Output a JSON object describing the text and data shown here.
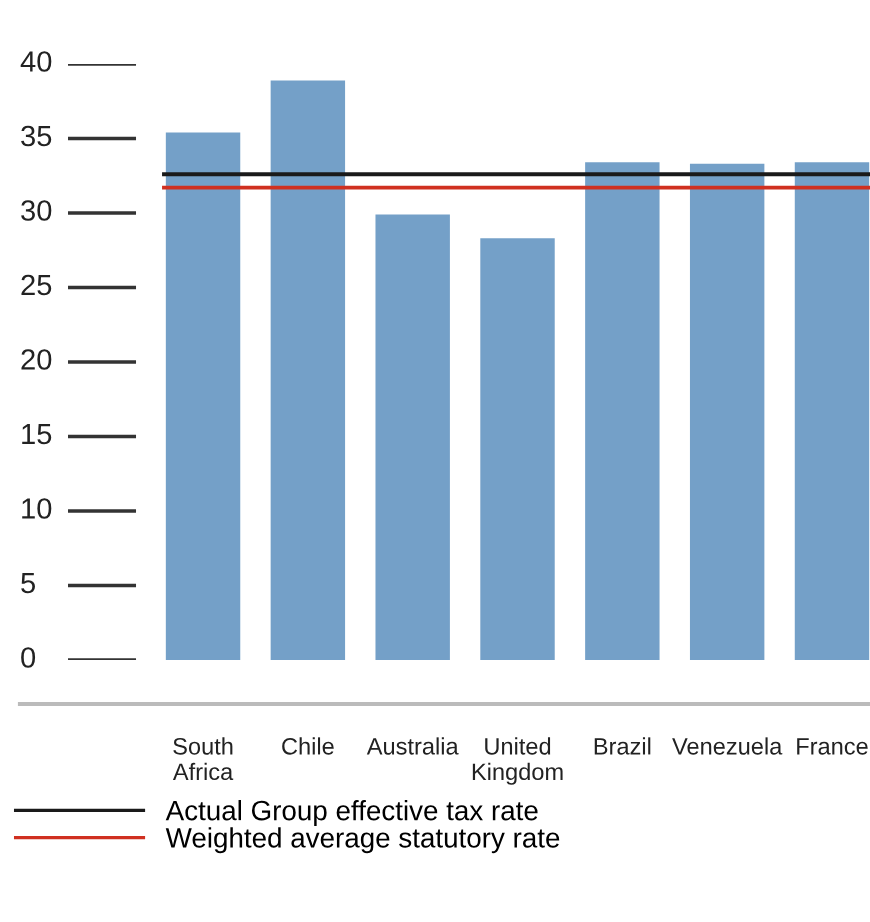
{
  "chart_data": {
    "type": "bar",
    "categories": [
      "South\nAfrica",
      "Chile",
      "Australia",
      "United\nKingdom",
      "Brazil",
      "Venezuela",
      "France"
    ],
    "values": [
      35.4,
      38.9,
      29.9,
      28.3,
      33.4,
      33.3,
      33.4
    ],
    "color": "#74a0c8",
    "ylim": [
      0,
      40
    ],
    "yticks": [
      0,
      5,
      10,
      15,
      20,
      25,
      30,
      35,
      40
    ],
    "ref_lines": [
      {
        "axis": "y",
        "value": 32.6,
        "label": "Actual Group effective tax rate",
        "color": "#1a1a1a"
      },
      {
        "axis": "y",
        "value": 31.7,
        "label": "Weighted average statutory rate",
        "color": "#d03020"
      }
    ],
    "legend": "bottom"
  }
}
